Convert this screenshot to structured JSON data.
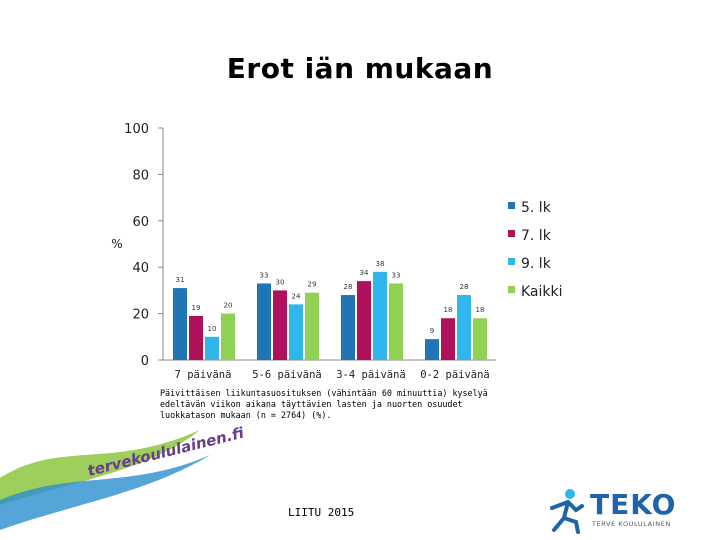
{
  "title": "Erot iän mukaan",
  "caption": "Päivittäisen liikuntasuosituksen (vähintään 60 minuuttia) kyselyä edeltävän viikon aikana täyttävien lasten ja nuorten osuudet luokkatason mukaan (n = 2764) (%).",
  "source": "LIITU 2015",
  "logo_site_text": "tervekoululainen.fi",
  "logo_brand": "TEKO",
  "logo_tagline": "TERVE KOULULAINEN",
  "chart_data": {
    "type": "bar",
    "title": "Erot iän mukaan",
    "ylabel": "%",
    "xlabel": "",
    "ylim": [
      0,
      100
    ],
    "yticks": [
      0,
      20,
      40,
      60,
      80,
      100
    ],
    "grid": false,
    "legend_position": "right",
    "categories": [
      "7 päivänä",
      "5-6 päivänä",
      "3-4 päivänä",
      "0-2 päivänä"
    ],
    "series": [
      {
        "name": "5. lk",
        "color": "#1f75b5",
        "values": [
          31,
          33,
          28,
          9
        ]
      },
      {
        "name": "7. lk",
        "color": "#b0115c",
        "values": [
          19,
          30,
          34,
          18
        ]
      },
      {
        "name": "9. lk",
        "color": "#2fb7ec",
        "values": [
          10,
          24,
          38,
          28
        ]
      },
      {
        "name": "Kaikki",
        "color": "#90d052",
        "values": [
          20,
          29,
          33,
          18
        ]
      }
    ]
  }
}
